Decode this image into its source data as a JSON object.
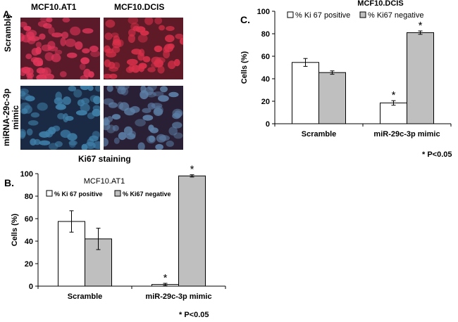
{
  "panel_a": {
    "letter": "A.",
    "column_labels": [
      "MCF10.AT1",
      "MCF10.DCIS"
    ],
    "row_labels": [
      "Scramble",
      "miRNA-29c-3p mimic"
    ],
    "row_label_lines": [
      "miRNA-29c-3p",
      "mimic"
    ],
    "caption": "Ki67 staining",
    "images": [
      {
        "row": "Scramble",
        "col": "MCF10.AT1",
        "dominant": "red nuclei",
        "bg": "#5a1a2a",
        "cell": "#e0365a"
      },
      {
        "row": "Scramble",
        "col": "MCF10.DCIS",
        "dominant": "red nuclei",
        "bg": "#5e1a26",
        "cell": "#d8304a"
      },
      {
        "row": "miRNA-29c-3p mimic",
        "col": "MCF10.AT1",
        "dominant": "blue nuclei",
        "bg": "#1a2a44",
        "cell": "#3f7fa8"
      },
      {
        "row": "miRNA-29c-3p mimic",
        "col": "MCF10.DCIS",
        "dominant": "blue nuclei",
        "bg": "#2a2036",
        "cell": "#5d7fa6"
      }
    ]
  },
  "chart_data": [
    {
      "panel_letter": "B.",
      "type": "bar",
      "title": "MCF10.AT1",
      "ylabel": "Cells (%)",
      "xlabel": "",
      "ylim": [
        0,
        100
      ],
      "yticks": [
        0,
        20,
        40,
        60,
        80,
        100
      ],
      "categories": [
        "Scramble",
        "miR-29c-3p mimic"
      ],
      "series": [
        {
          "name": "% Ki 67 positive",
          "color": "#ffffff",
          "values": [
            57.5,
            1.5
          ],
          "errors": [
            9.5,
            1.0
          ]
        },
        {
          "name": "% Ki67 negative",
          "color": "#bfbfbf",
          "values": [
            42.0,
            98.0
          ],
          "errors": [
            9.5,
            1.0
          ]
        }
      ],
      "significance": [
        {
          "category": "miR-29c-3p mimic",
          "series": "% Ki 67 positive",
          "mark": "*"
        },
        {
          "category": "miR-29c-3p mimic",
          "series": "% Ki67 negative",
          "mark": "*"
        }
      ],
      "legend_position": "top",
      "footnote": "* P<0.05"
    },
    {
      "panel_letter": "C.",
      "type": "bar",
      "title": "MCF10.DCIS",
      "ylabel": "Cells (%)",
      "xlabel": "",
      "ylim": [
        0,
        100
      ],
      "yticks": [
        0,
        20,
        40,
        60,
        80,
        100
      ],
      "categories": [
        "Scramble",
        "miR-29c-3p mimic"
      ],
      "series": [
        {
          "name": "% Ki 67 positive",
          "color": "#ffffff",
          "values": [
            54.5,
            18.5
          ],
          "errors": [
            3.5,
            2.0
          ]
        },
        {
          "name": "% Ki67 negative",
          "color": "#bfbfbf",
          "values": [
            45.5,
            81.0
          ],
          "errors": [
            1.5,
            1.5
          ]
        }
      ],
      "significance": [
        {
          "category": "miR-29c-3p mimic",
          "series": "% Ki 67 positive",
          "mark": "*"
        },
        {
          "category": "miR-29c-3p mimic",
          "series": "% Ki67 negative",
          "mark": "*"
        }
      ],
      "legend_position": "top",
      "footnote": "* P<0.05"
    }
  ]
}
